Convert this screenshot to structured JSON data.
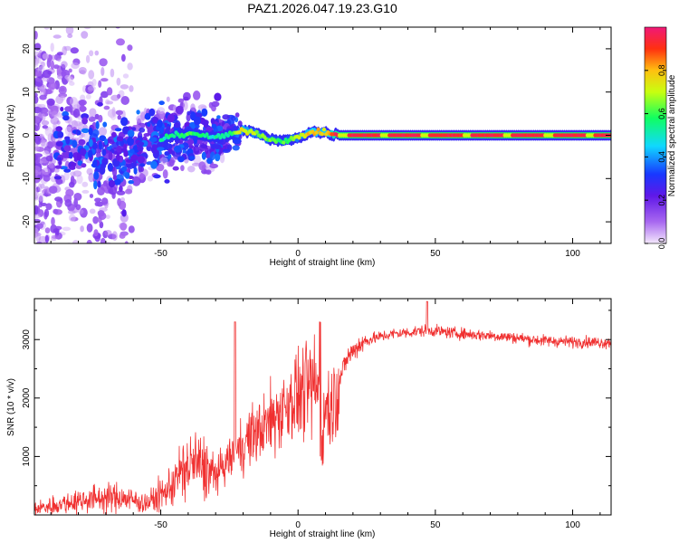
{
  "title": "PAZ1.2026.047.19.23.G10",
  "chart_data": [
    {
      "type": "heatmap",
      "name": "spectrogram",
      "xlabel": "Height of straight line (km)",
      "ylabel": "Frequency (Hz)",
      "xlim": [
        -96,
        114
      ],
      "ylim": [
        -25,
        25
      ],
      "xticks": [
        -50,
        0,
        50,
        100
      ],
      "yticks": [
        -20,
        -10,
        0,
        10,
        20
      ],
      "colorbar": {
        "label": "Normalized spectral amplitude",
        "range": [
          0,
          1
        ],
        "ticks": [
          0.0,
          0.2,
          0.4,
          0.6,
          0.8
        ],
        "colors": [
          "#f4e8fc",
          "#a868f0",
          "#6018e8",
          "#1838ff",
          "#10d8ff",
          "#10ff60",
          "#c8ff10",
          "#ffc010",
          "#ff3010",
          "#f01878"
        ]
      },
      "ridge": {
        "x": [
          -96,
          -80,
          -70,
          -62,
          -55,
          -45,
          -38,
          -32,
          -25,
          -20,
          -15,
          -10,
          -5,
          0,
          5,
          10,
          15,
          25,
          40,
          60,
          80,
          100,
          114
        ],
        "y": [
          -1.5,
          -3,
          -4.5,
          -5.5,
          -2,
          0,
          0.5,
          -0.5,
          0,
          1.2,
          0.5,
          -1,
          -1.3,
          -0.5,
          0.8,
          0.6,
          0,
          0,
          0,
          0,
          0,
          0,
          0
        ],
        "amplitude": [
          0.05,
          0.3,
          0.5,
          0.45,
          0.4,
          0.5,
          0.55,
          0.45,
          0.5,
          0.7,
          0.62,
          0.58,
          0.55,
          0.62,
          0.75,
          0.72,
          0.95,
          0.97,
          0.98,
          0.98,
          0.97,
          0.97,
          0.96
        ]
      }
    },
    {
      "type": "line",
      "name": "snr",
      "xlabel": "Height of straight line (km)",
      "ylabel": "SNR (10 * v/v)",
      "xlim": [
        -96,
        114
      ],
      "ylim": [
        0,
        3700
      ],
      "xticks": [
        -50,
        0,
        50,
        100
      ],
      "yticks": [
        1000,
        2000,
        3000
      ],
      "color": "#f03030",
      "x": [
        -96,
        -85,
        -75,
        -65,
        -55,
        -48,
        -43,
        -38,
        -34,
        -30,
        -26,
        -22,
        -18,
        -14,
        -10,
        -6,
        -2,
        2,
        6,
        9,
        12,
        15,
        18,
        22,
        26,
        30,
        35,
        40,
        45,
        50,
        55,
        60,
        65,
        70,
        75,
        80,
        85,
        90,
        95,
        100,
        105,
        110,
        114
      ],
      "values": [
        100,
        200,
        280,
        300,
        200,
        400,
        700,
        900,
        800,
        650,
        900,
        1100,
        1300,
        1450,
        1600,
        1800,
        2000,
        2100,
        2200,
        2000,
        1800,
        2300,
        2700,
        2900,
        3000,
        3050,
        3100,
        3120,
        3150,
        3150,
        3120,
        3100,
        3080,
        3070,
        3050,
        3030,
        3000,
        2980,
        2970,
        2960,
        2960,
        2950,
        2950
      ],
      "spikes": [
        {
          "x": -23,
          "value": 3300
        },
        {
          "x": 8,
          "value": 3300
        },
        {
          "x": 47,
          "value": 3650
        }
      ]
    }
  ]
}
